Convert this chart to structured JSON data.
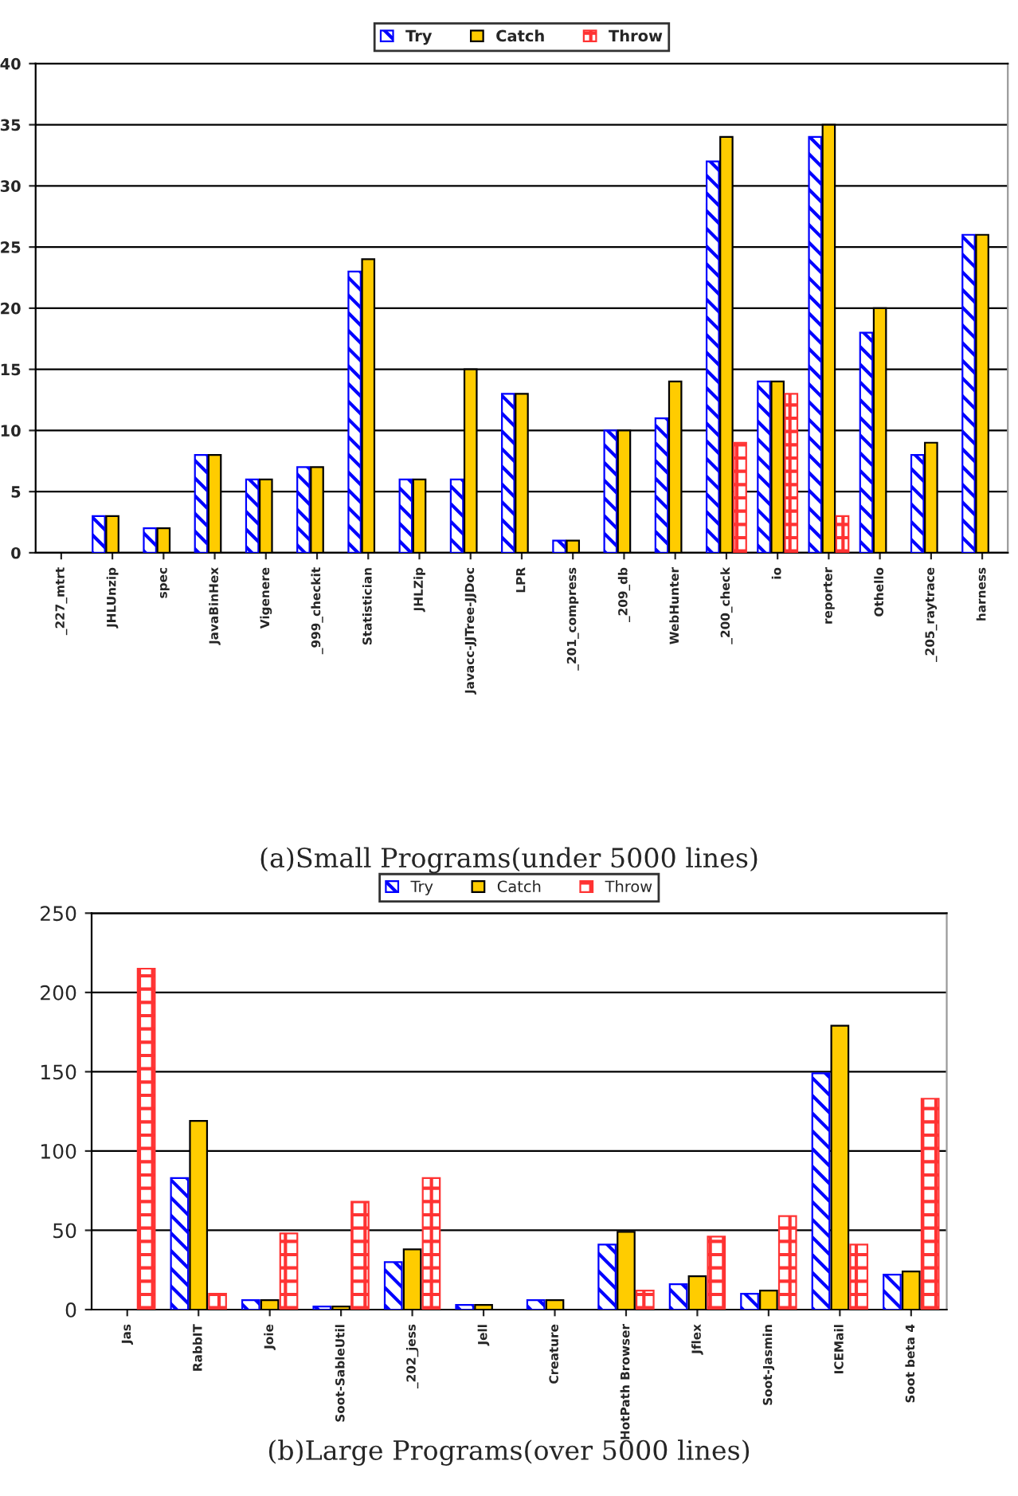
{
  "chart_data": [
    {
      "type": "bar",
      "title": "(a)Small Programs(under 5000 lines)",
      "categories": [
        "_227_mtrt",
        "JHLUnzip",
        "spec",
        "JavaBinHex",
        "Vigenere",
        "_999_checkit",
        "Statistician",
        "JHLZip",
        "Javacc-JJTree-JJDoc",
        "LPR",
        "_201_compress",
        "_209_db",
        "WebHunter",
        "_200_check",
        "io",
        "reporter",
        "Othello",
        "_205_raytrace",
        "harness"
      ],
      "series": [
        {
          "name": "Try",
          "color": "#0000ff",
          "values": [
            0,
            3,
            2,
            8,
            6,
            7,
            23,
            6,
            6,
            13,
            1,
            10,
            11,
            32,
            14,
            34,
            18,
            8,
            26
          ]
        },
        {
          "name": "Catch",
          "color": "#ffcc00",
          "values": [
            0,
            3,
            2,
            8,
            6,
            7,
            24,
            6,
            15,
            13,
            1,
            10,
            14,
            34,
            14,
            35,
            20,
            9,
            26
          ]
        },
        {
          "name": "Throw",
          "color": "#ff3333",
          "values": [
            0,
            0,
            0,
            0,
            0,
            0,
            0,
            0,
            0,
            0,
            0,
            0,
            0,
            9,
            13,
            3,
            0,
            0,
            0
          ]
        }
      ],
      "ylim": [
        0,
        40
      ],
      "yticks": [
        0,
        5,
        10,
        15,
        20,
        25,
        30,
        35,
        40
      ],
      "grid": "y",
      "legend": "top"
    },
    {
      "type": "bar",
      "title": "(b)Large Programs(over 5000 lines)",
      "categories": [
        "Jas",
        "RabbIT",
        "Joie",
        "Soot-SableUtil",
        "_202_jess",
        "Jell",
        "Creature",
        "HotPath Browser",
        "Jflex",
        "Soot-Jasmin",
        "ICEMail",
        "Soot beta 4"
      ],
      "series": [
        {
          "name": "Try",
          "color": "#0000ff",
          "values": [
            0,
            83,
            6,
            2,
            30,
            3,
            6,
            41,
            16,
            10,
            149,
            22
          ]
        },
        {
          "name": "Catch",
          "color": "#ffcc00",
          "values": [
            0,
            119,
            6,
            2,
            38,
            3,
            6,
            49,
            21,
            12,
            179,
            24
          ]
        },
        {
          "name": "Throw",
          "color": "#ff3333",
          "values": [
            215,
            10,
            48,
            68,
            83,
            0,
            0,
            12,
            46,
            59,
            41,
            133
          ]
        }
      ],
      "ylim": [
        0,
        250
      ],
      "yticks": [
        0,
        50,
        100,
        150,
        200,
        250
      ],
      "grid": "y",
      "legend": "top"
    }
  ]
}
